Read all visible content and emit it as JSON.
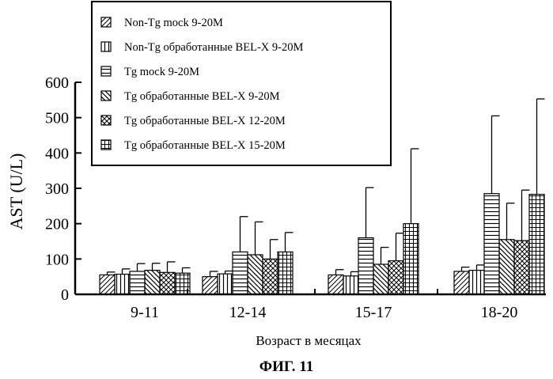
{
  "caption": "ФИГ. 11",
  "chart_data": {
    "type": "bar",
    "ylabel": "AST (U/L)",
    "xlabel": "Возраст в месяцах",
    "ylim": [
      0,
      600
    ],
    "yticks": [
      0,
      100,
      200,
      300,
      400,
      500,
      600
    ],
    "categories": [
      "9-11",
      "12-14",
      "15-17",
      "18-20"
    ],
    "legend_position": "top-left",
    "grid": false,
    "series": [
      {
        "name": "Non-Tg mock 9-20M",
        "pattern": "diag-right",
        "values": [
          55,
          50,
          55,
          65
        ],
        "errors": [
          8,
          15,
          15,
          12
        ]
      },
      {
        "name": "Non-Tg обработанные BEL-X 9-20M",
        "pattern": "vertical",
        "values": [
          57,
          58,
          52,
          68
        ],
        "errors": [
          15,
          8,
          12,
          15
        ]
      },
      {
        "name": "Tg mock 9-20M",
        "pattern": "horizontal",
        "values": [
          65,
          120,
          160,
          285
        ],
        "errors": [
          22,
          100,
          142,
          220
        ]
      },
      {
        "name": "Tg обработанные BEL-X 9-20M",
        "pattern": "diag-left",
        "values": [
          68,
          112,
          85,
          155
        ],
        "errors": [
          20,
          93,
          48,
          103
        ]
      },
      {
        "name": "Tg обработанные BEL-X 12-20M",
        "pattern": "crosshatch",
        "values": [
          62,
          100,
          95,
          152
        ],
        "errors": [
          30,
          55,
          78,
          143
        ]
      },
      {
        "name": "Tg обработанные BEL-X 15-20M",
        "pattern": "grid",
        "values": [
          60,
          120,
          200,
          283
        ],
        "errors": [
          15,
          55,
          212,
          270
        ]
      }
    ]
  }
}
